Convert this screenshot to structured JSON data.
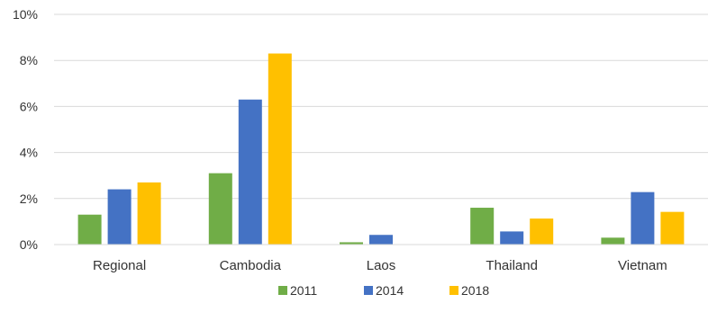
{
  "chart_data": {
    "type": "bar",
    "title": "",
    "xlabel": "",
    "ylabel": "",
    "categories": [
      "Regional",
      "Cambodia",
      "Laos",
      "Thailand",
      "Vietnam"
    ],
    "series": [
      {
        "name": "2011",
        "color": "#70AD47",
        "values": [
          1.3,
          3.1,
          0.1,
          1.6,
          0.3
        ]
      },
      {
        "name": "2014",
        "color": "#4472C4",
        "values": [
          2.4,
          6.3,
          0.42,
          0.57,
          2.28
        ]
      },
      {
        "name": "2018",
        "color": "#FFC000",
        "values": [
          2.7,
          8.3,
          0,
          1.13,
          1.42
        ]
      }
    ],
    "ylim": [
      0,
      10
    ],
    "yticks": [
      "0%",
      "2%",
      "4%",
      "6%",
      "8%",
      "10%"
    ],
    "ytick_values": [
      0,
      2,
      4,
      6,
      8,
      10
    ],
    "grid": true,
    "gridline_color": "#D9D9D9",
    "legend_position": "bottom"
  }
}
